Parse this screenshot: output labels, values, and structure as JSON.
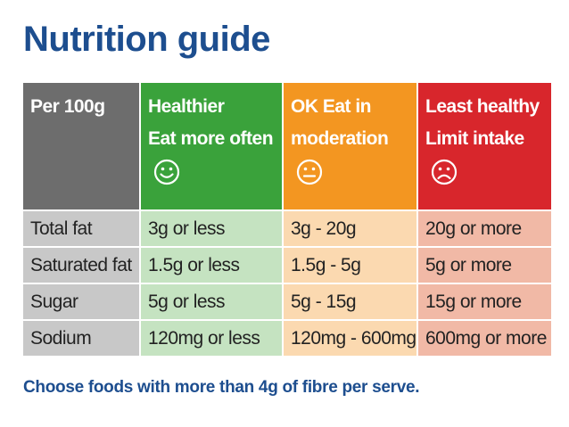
{
  "title": "Nutrition guide",
  "header": {
    "col1": "Per 100g",
    "col2": {
      "line1": "Healthier",
      "line2": "Eat more often",
      "icon": "smiley-face-icon"
    },
    "col3": {
      "line1": "OK Eat in",
      "line2": "moderation",
      "icon": "neutral-face-icon"
    },
    "col4": {
      "line1": "Least healthy",
      "line2": "Limit intake",
      "icon": "sad-face-icon"
    }
  },
  "rows": [
    {
      "nutrient": "Total fat",
      "healthier": "3g or less",
      "ok": "3g - 20g",
      "least": "20g or more"
    },
    {
      "nutrient": "Saturated fat",
      "healthier": "1.5g or less",
      "ok": "1.5g - 5g",
      "least": "5g or more"
    },
    {
      "nutrient": "Sugar",
      "healthier": "5g or less",
      "ok": "5g - 15g",
      "least": "15g or more"
    },
    {
      "nutrient": "Sodium",
      "healthier": "120mg or less",
      "ok": "120mg - 600mg",
      "least": "600mg or more"
    }
  ],
  "footer": "Choose foods with more than 4g of fibre per serve.",
  "colors": {
    "title": "#1d4e8f",
    "grey_header": "#6d6d6d",
    "green_header": "#3aa23b",
    "orange_header": "#f39621",
    "red_header": "#d8262c",
    "grey_cell": "#c8c8c8",
    "green_cell": "#c5e3c1",
    "orange_cell": "#fbd9b0",
    "red_cell": "#f1b9a6"
  }
}
